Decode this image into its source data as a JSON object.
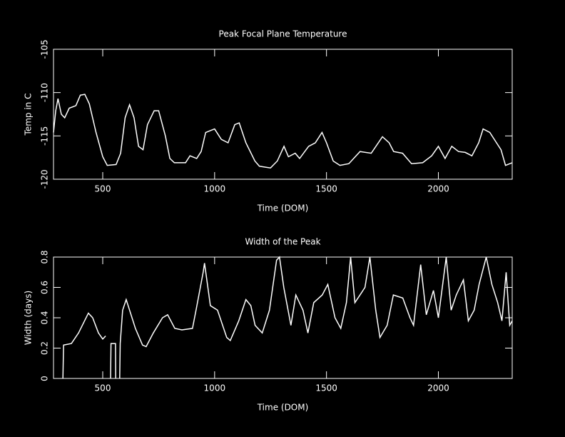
{
  "chart_data": [
    {
      "type": "line",
      "title": "Peak Focal Plane Temperature",
      "xlabel": "Time (DOM)",
      "ylabel": "Temp in C",
      "xlim": [
        280,
        2330
      ],
      "ylim": [
        -120,
        -105
      ],
      "xticks": [
        500,
        1000,
        1500,
        2000
      ],
      "yticks": [
        -105,
        -110,
        -115,
        -120
      ],
      "color": "#ffffff",
      "x": [
        280,
        290,
        300,
        315,
        330,
        350,
        380,
        400,
        420,
        440,
        470,
        500,
        520,
        560,
        580,
        600,
        620,
        640,
        660,
        680,
        700,
        730,
        750,
        780,
        800,
        820,
        870,
        890,
        920,
        940,
        960,
        1000,
        1030,
        1060,
        1090,
        1110,
        1140,
        1180,
        1200,
        1250,
        1280,
        1310,
        1330,
        1360,
        1380,
        1420,
        1450,
        1480,
        1500,
        1530,
        1560,
        1600,
        1650,
        1700,
        1750,
        1780,
        1800,
        1840,
        1880,
        1930,
        1970,
        2000,
        2030,
        2060,
        2090,
        2120,
        2150,
        2180,
        2200,
        2230,
        2260,
        2280,
        2300,
        2330
      ],
      "values": [
        -114.6,
        -112.1,
        -110.7,
        -112.5,
        -112.9,
        -111.8,
        -111.5,
        -110.3,
        -110.2,
        -111.3,
        -114.6,
        -117.4,
        -118.4,
        -118.3,
        -117,
        -112.9,
        -111.4,
        -112.9,
        -116.2,
        -116.6,
        -113.7,
        -112.1,
        -112.1,
        -115,
        -117.6,
        -118.1,
        -118.1,
        -117.3,
        -117.6,
        -116.8,
        -114.6,
        -114.2,
        -115.4,
        -115.8,
        -113.7,
        -113.5,
        -115.8,
        -117.9,
        -118.5,
        -118.7,
        -117.9,
        -116.2,
        -117.4,
        -117,
        -117.6,
        -116.2,
        -115.8,
        -114.6,
        -115.8,
        -117.9,
        -118.4,
        -118.2,
        -116.8,
        -117,
        -115.1,
        -115.8,
        -116.8,
        -117,
        -118.2,
        -118.1,
        -117.3,
        -116.2,
        -117.6,
        -116.2,
        -116.8,
        -116.9,
        -117.3,
        -115.8,
        -114.2,
        -114.6,
        -115.8,
        -116.6,
        -118.4,
        -118.1
      ]
    },
    {
      "type": "line",
      "title": "Width of the Peak",
      "xlabel": "Time (DOM)",
      "ylabel": "Width (days)",
      "xlim": [
        280,
        2330
      ],
      "ylim": [
        0,
        0.8
      ],
      "xticks": [
        500,
        1000,
        1500,
        2000
      ],
      "yticks": [
        0,
        0.2,
        0.4,
        0.6,
        0.8
      ],
      "color": "#ffffff",
      "x": [
        322,
        325,
        360,
        392,
        436,
        455,
        481,
        500,
        513,
        524,
        535,
        537,
        557,
        558,
        567,
        576,
        578,
        589,
        605,
        646,
        678,
        694,
        726,
        767,
        790,
        822,
        854,
        901,
        917,
        949,
        955,
        981,
        1013,
        1054,
        1070,
        1108,
        1140,
        1162,
        1181,
        1213,
        1245,
        1277,
        1290,
        1309,
        1341,
        1363,
        1395,
        1417,
        1443,
        1481,
        1506,
        1538,
        1564,
        1589,
        1608,
        1627,
        1650,
        1672,
        1694,
        1720,
        1739,
        1771,
        1799,
        1841,
        1873,
        1889,
        1921,
        1946,
        1978,
        2000,
        2035,
        2057,
        2080,
        2112,
        2134,
        2160,
        2182,
        2214,
        2239,
        2265,
        2284,
        2303,
        2319,
        2330
      ],
      "values": [
        0,
        0.22,
        0.23,
        0.3,
        0.43,
        0.4,
        0.3,
        0.26,
        0.28,
        null,
        0,
        0.23,
        0.23,
        0,
        null,
        0,
        0.23,
        0.45,
        0.52,
        0.33,
        0.22,
        0.21,
        0.3,
        0.4,
        0.42,
        0.33,
        0.32,
        0.33,
        0.45,
        0.7,
        0.76,
        0.48,
        0.45,
        0.27,
        0.25,
        0.38,
        0.52,
        0.48,
        0.35,
        0.3,
        0.45,
        0.78,
        0.8,
        0.6,
        0.35,
        0.55,
        0.45,
        0.3,
        0.5,
        0.55,
        0.62,
        0.4,
        0.33,
        0.5,
        0.8,
        0.5,
        0.55,
        0.6,
        0.8,
        0.45,
        0.27,
        0.35,
        0.55,
        0.53,
        0.4,
        0.35,
        0.75,
        0.42,
        0.58,
        0.4,
        0.8,
        0.45,
        0.55,
        0.65,
        0.38,
        0.45,
        0.62,
        0.8,
        0.62,
        0.5,
        0.38,
        0.7,
        0.35,
        0.38
      ]
    }
  ]
}
